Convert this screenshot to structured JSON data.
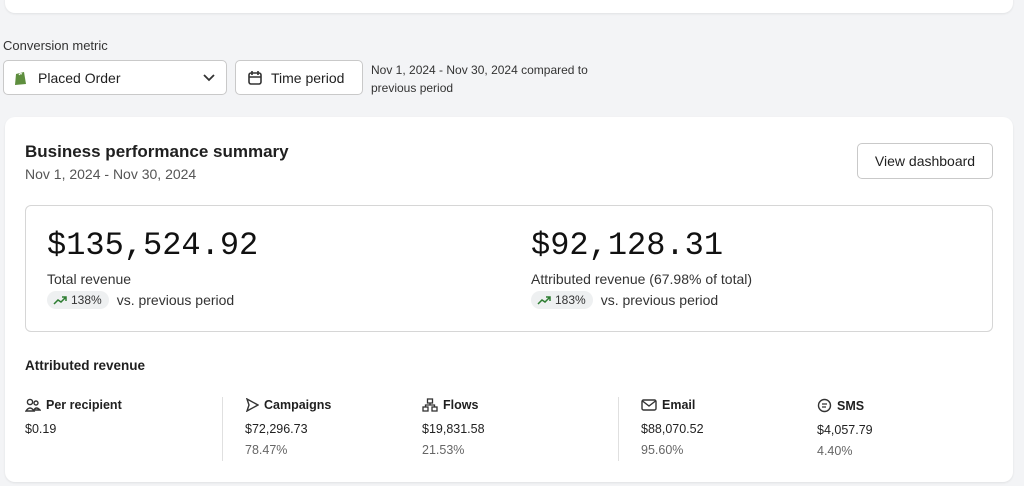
{
  "filters": {
    "label": "Conversion metric",
    "metric": "Placed Order",
    "time_button": "Time period",
    "period_text": "Nov 1, 2024 - Nov 30, 2024 compared to previous period"
  },
  "summary": {
    "title": "Business performance summary",
    "date_range": "Nov 1, 2024 - Nov 30, 2024",
    "button": "View dashboard",
    "metrics": [
      {
        "value": "$135,524.92",
        "label": "Total revenue",
        "change": "138%",
        "change_text": "vs. previous period"
      },
      {
        "value": "$92,128.31",
        "label": "Attributed revenue (67.98% of total)",
        "change": "183%",
        "change_text": "vs. previous period"
      }
    ],
    "attributed": {
      "title": "Attributed revenue",
      "stats": [
        {
          "label": "Per recipient",
          "value": "$0.19"
        },
        {
          "label": "Campaigns",
          "value": "$72,296.73",
          "share": "78.47%"
        },
        {
          "label": "Flows",
          "value": "$19,831.58",
          "share": "21.53%"
        },
        {
          "label": "Email",
          "value": "$88,070.52",
          "share": "95.60%"
        },
        {
          "label": "SMS",
          "value": "$4,057.79",
          "share": "4.40%"
        }
      ]
    }
  }
}
